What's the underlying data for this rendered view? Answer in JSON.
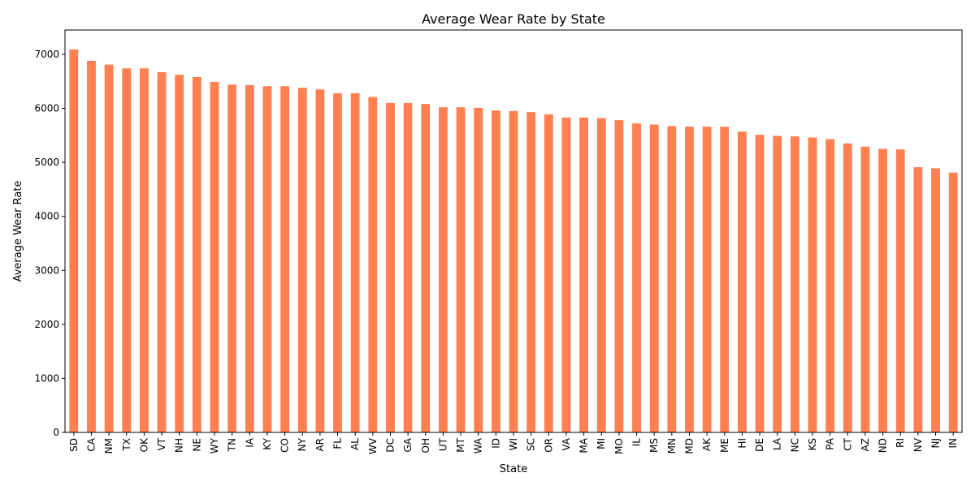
{
  "chart_data": {
    "type": "bar",
    "title": "Average Wear Rate by State",
    "xlabel": "State",
    "ylabel": "Average Wear Rate",
    "ylim": [
      0,
      7450
    ],
    "yticks": [
      0,
      1000,
      2000,
      3000,
      4000,
      5000,
      6000,
      7000
    ],
    "grid": false,
    "legend": "none",
    "bar_color": "#ff7f50",
    "categories": [
      "SD",
      "CA",
      "NM",
      "TX",
      "OK",
      "VT",
      "NH",
      "NE",
      "WY",
      "TN",
      "IA",
      "KY",
      "CO",
      "NY",
      "AR",
      "FL",
      "AL",
      "WV",
      "DC",
      "GA",
      "OH",
      "UT",
      "MT",
      "WA",
      "ID",
      "WI",
      "SC",
      "OR",
      "VA",
      "MA",
      "MI",
      "MO",
      "IL",
      "MS",
      "MN",
      "MD",
      "AK",
      "ME",
      "HI",
      "DE",
      "LA",
      "NC",
      "KS",
      "PA",
      "CT",
      "AZ",
      "ND",
      "RI",
      "NV",
      "NJ",
      "IN"
    ],
    "values": [
      7090,
      6880,
      6810,
      6740,
      6740,
      6670,
      6620,
      6580,
      6490,
      6440,
      6430,
      6410,
      6410,
      6380,
      6350,
      6280,
      6280,
      6210,
      6100,
      6100,
      6080,
      6020,
      6020,
      6010,
      5960,
      5950,
      5930,
      5890,
      5830,
      5830,
      5820,
      5780,
      5720,
      5700,
      5670,
      5660,
      5660,
      5660,
      5570,
      5510,
      5490,
      5480,
      5460,
      5430,
      5350,
      5290,
      5250,
      5240,
      4910,
      4890,
      4810
    ]
  }
}
